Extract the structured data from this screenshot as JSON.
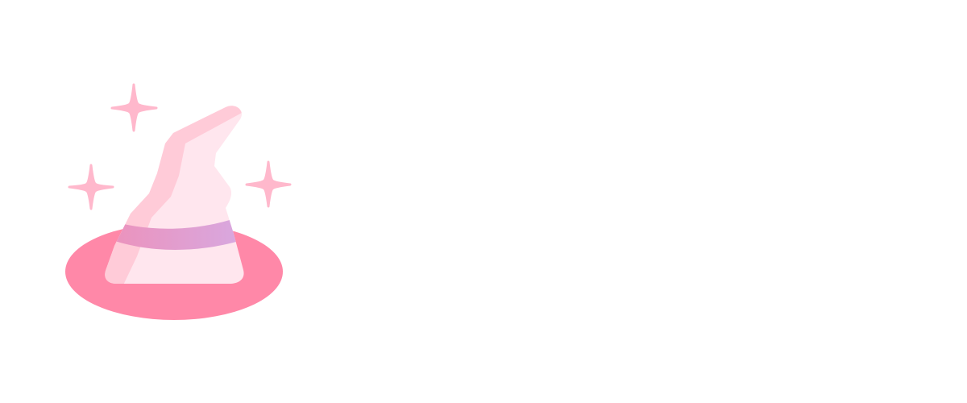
{
  "illustration": {
    "subject": "witch-hat-icon",
    "sparkles": [
      "sparkle-icon",
      "sparkle-icon",
      "sparkle-icon"
    ]
  },
  "colors": {
    "background": "#ffffff",
    "brim": "#ff88a8",
    "hat_light": "#ffe6ee",
    "hat_shadow": "#ffcbd8",
    "band_start": "#ee90b8",
    "band_end": "#d8a8e0",
    "sparkle": "#ffb8cc"
  }
}
